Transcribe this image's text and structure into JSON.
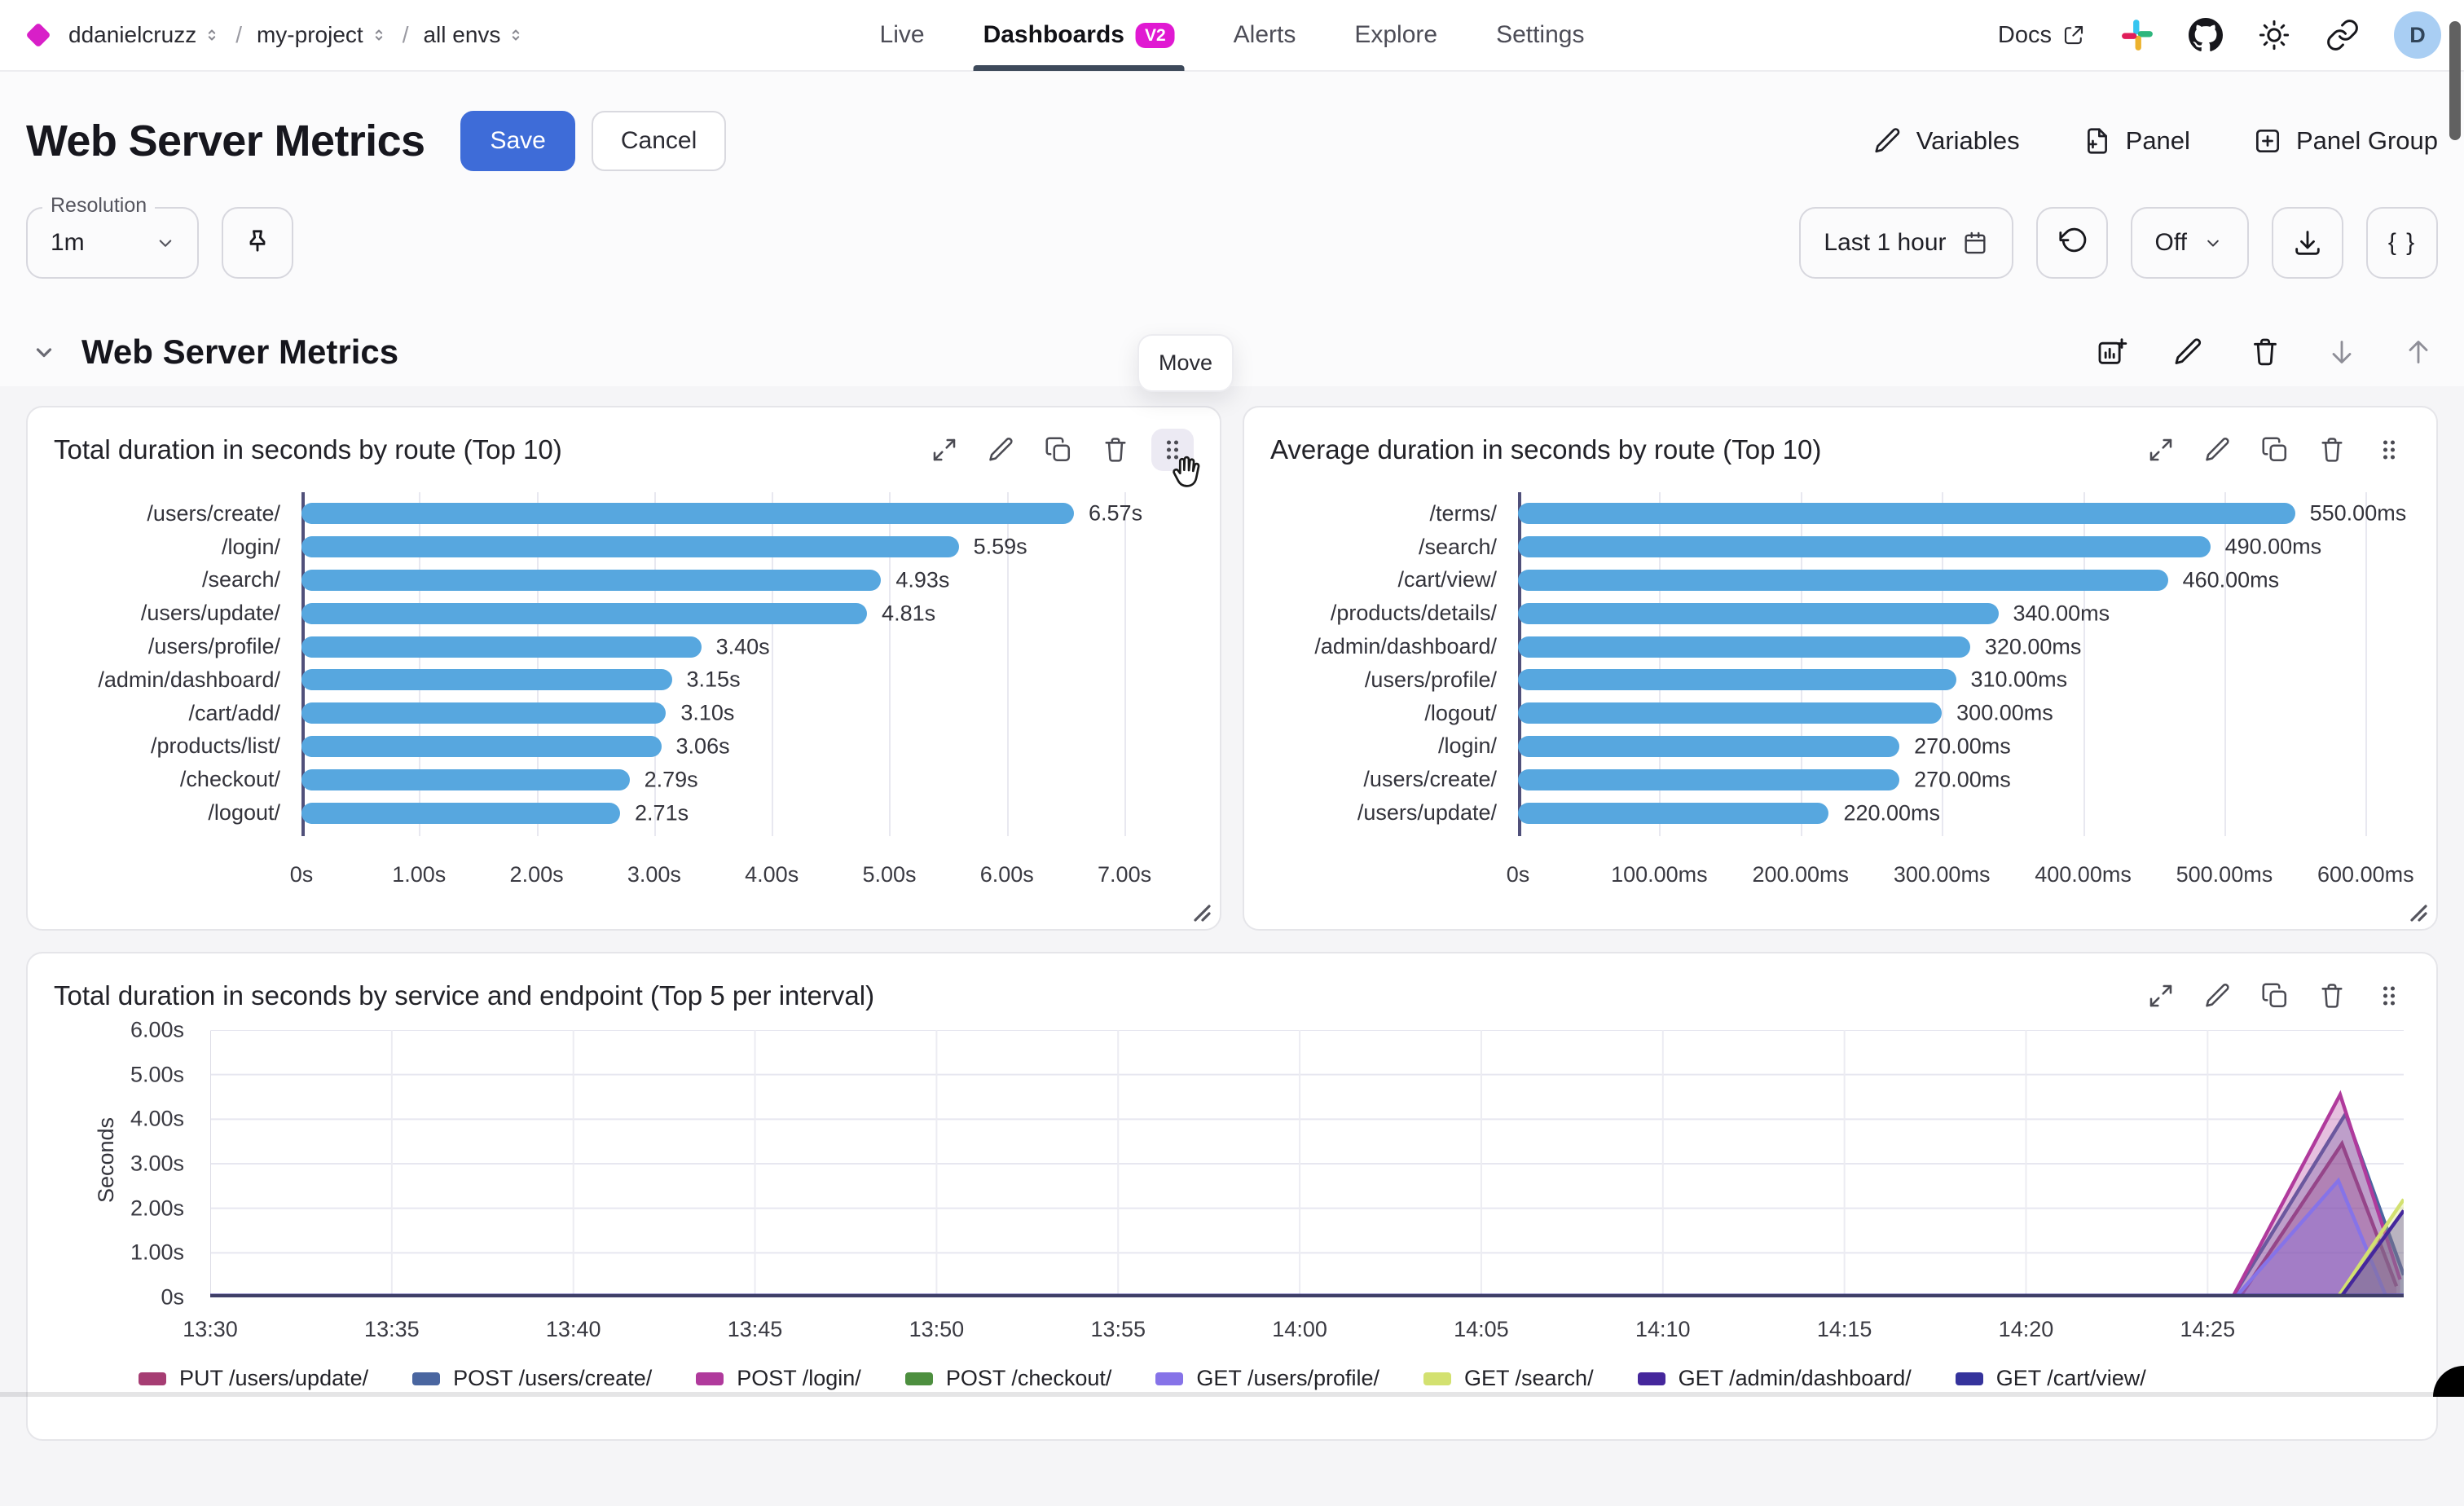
{
  "topbar": {
    "breadcrumb": [
      {
        "label": "ddanielcruzz"
      },
      {
        "label": "my-project"
      },
      {
        "label": "all envs"
      }
    ],
    "separator": "/",
    "nav": [
      {
        "label": "Live",
        "active": false
      },
      {
        "label": "Dashboards",
        "active": true,
        "badge": "V2"
      },
      {
        "label": "Alerts",
        "active": false
      },
      {
        "label": "Explore",
        "active": false
      },
      {
        "label": "Settings",
        "active": false
      }
    ],
    "docs_label": "Docs",
    "avatar_letter": "D"
  },
  "header": {
    "title": "Web Server Metrics",
    "save_label": "Save",
    "cancel_label": "Cancel",
    "variables_label": "Variables",
    "panel_label": "Panel",
    "panel_group_label": "Panel Group"
  },
  "filters": {
    "resolution_label": "Resolution",
    "resolution_value": "1m",
    "time_range_label": "Last 1 hour",
    "auto_refresh_label": "Off",
    "braces_label": "{ }"
  },
  "section": {
    "title": "Web Server Metrics",
    "move_tooltip": "Move"
  },
  "colors": {
    "accent_blue": "#3e6cd8",
    "badge_magenta": "#e019d2",
    "bar_blue": "#57a7df",
    "axis_dark": "#50507a",
    "gridline": "#e8e8f0"
  },
  "chart_data": [
    {
      "type": "bar",
      "orientation": "horizontal",
      "title": "Total duration in seconds by route (Top 10)",
      "categories": [
        "/users/create/",
        "/login/",
        "/search/",
        "/users/update/",
        "/users/profile/",
        "/admin/dashboard/",
        "/cart/add/",
        "/products/list/",
        "/checkout/",
        "/logout/"
      ],
      "values": [
        6.57,
        5.59,
        4.93,
        4.81,
        3.4,
        3.15,
        3.1,
        3.06,
        2.79,
        2.71
      ],
      "value_labels": [
        "6.57s",
        "5.59s",
        "4.93s",
        "4.81s",
        "3.40s",
        "3.15s",
        "3.10s",
        "3.06s",
        "2.79s",
        "2.71s"
      ],
      "tick_values": [
        0,
        1,
        2,
        3,
        4,
        5,
        6,
        7
      ],
      "tick_labels": [
        "0s",
        "1.00s",
        "2.00s",
        "3.00s",
        "4.00s",
        "5.00s",
        "6.00s",
        "7.00s"
      ],
      "axis_max": 7.45,
      "bar_color": "#57a7df",
      "grid": true
    },
    {
      "type": "bar",
      "orientation": "horizontal",
      "title": "Average duration in seconds by route (Top 10)",
      "categories": [
        "/terms/",
        "/search/",
        "/cart/view/",
        "/products/details/",
        "/admin/dashboard/",
        "/users/profile/",
        "/logout/",
        "/login/",
        "/users/create/",
        "/users/update/"
      ],
      "values": [
        550,
        490,
        460,
        340,
        320,
        310,
        300,
        270,
        270,
        220
      ],
      "value_labels": [
        "550.00ms",
        "490.00ms",
        "460.00ms",
        "340.00ms",
        "320.00ms",
        "310.00ms",
        "300.00ms",
        "270.00ms",
        "270.00ms",
        "220.00ms"
      ],
      "tick_values": [
        0,
        100,
        200,
        300,
        400,
        500,
        600
      ],
      "tick_labels": [
        "0s",
        "100.00ms",
        "200.00ms",
        "300.00ms",
        "400.00ms",
        "500.00ms",
        "600.00ms"
      ],
      "axis_max": 620,
      "bar_color": "#57a7df",
      "grid": true
    },
    {
      "type": "area",
      "title": "Total duration in seconds by service and endpoint (Top 5 per interval)",
      "ylabel": "Seconds",
      "ylim": [
        0,
        6
      ],
      "y_tick_values": [
        0,
        1,
        2,
        3,
        4,
        5,
        6
      ],
      "y_tick_labels": [
        "0s",
        "1.00s",
        "2.00s",
        "3.00s",
        "4.00s",
        "5.00s",
        "6.00s"
      ],
      "x_domain_minutes": [
        0,
        60.4
      ],
      "x_tick_minutes": [
        0,
        5,
        10,
        15,
        20,
        25,
        30,
        35,
        40,
        45,
        50,
        55
      ],
      "x_tick_labels": [
        "13:30",
        "13:35",
        "13:40",
        "13:45",
        "13:50",
        "13:55",
        "14:00",
        "14:05",
        "14:10",
        "14:15",
        "14:20",
        "14:25"
      ],
      "grid": true,
      "legend_position": "bottom",
      "series": [
        {
          "name": "PUT /users/update/",
          "color": "#a63d73",
          "points": [
            [
              0,
              0.02
            ],
            [
              55.9,
              0.02
            ],
            [
              58.7,
              3.45
            ],
            [
              60.2,
              0.25
            ]
          ]
        },
        {
          "name": "POST /users/create/",
          "color": "#4a66a0",
          "points": [
            [
              0,
              0.02
            ],
            [
              55.7,
              0.02
            ],
            [
              58.8,
              4.12
            ],
            [
              60.4,
              0.5
            ]
          ]
        },
        {
          "name": "POST /login/",
          "color": "#b03a9c",
          "points": [
            [
              0,
              0.02
            ],
            [
              55.7,
              0.02
            ],
            [
              58.65,
              4.55
            ],
            [
              60.3,
              0.4
            ]
          ]
        },
        {
          "name": "POST /checkout/",
          "color": "#4d8f3f",
          "points": [
            [
              0,
              0.02
            ],
            [
              60.4,
              0.02
            ]
          ]
        },
        {
          "name": "GET /users/profile/",
          "color": "#8673e8",
          "points": [
            [
              0,
              0.03
            ],
            [
              55.8,
              0.03
            ],
            [
              58.6,
              2.62
            ],
            [
              59.9,
              0.05
            ],
            [
              60.4,
              0.05
            ]
          ]
        },
        {
          "name": "GET /search/",
          "color": "#d3e170",
          "points": [
            [
              0,
              0.02
            ],
            [
              58.6,
              0.02
            ],
            [
              60.4,
              2.2
            ]
          ]
        },
        {
          "name": "GET /admin/dashboard/",
          "color": "#45279c",
          "points": [
            [
              0,
              0.04
            ],
            [
              58.7,
              0.04
            ],
            [
              60.4,
              1.95
            ]
          ]
        },
        {
          "name": "GET /cart/view/",
          "color": "#35339c",
          "points": [
            [
              0,
              0.04
            ],
            [
              60.4,
              0.04
            ]
          ]
        }
      ]
    }
  ]
}
